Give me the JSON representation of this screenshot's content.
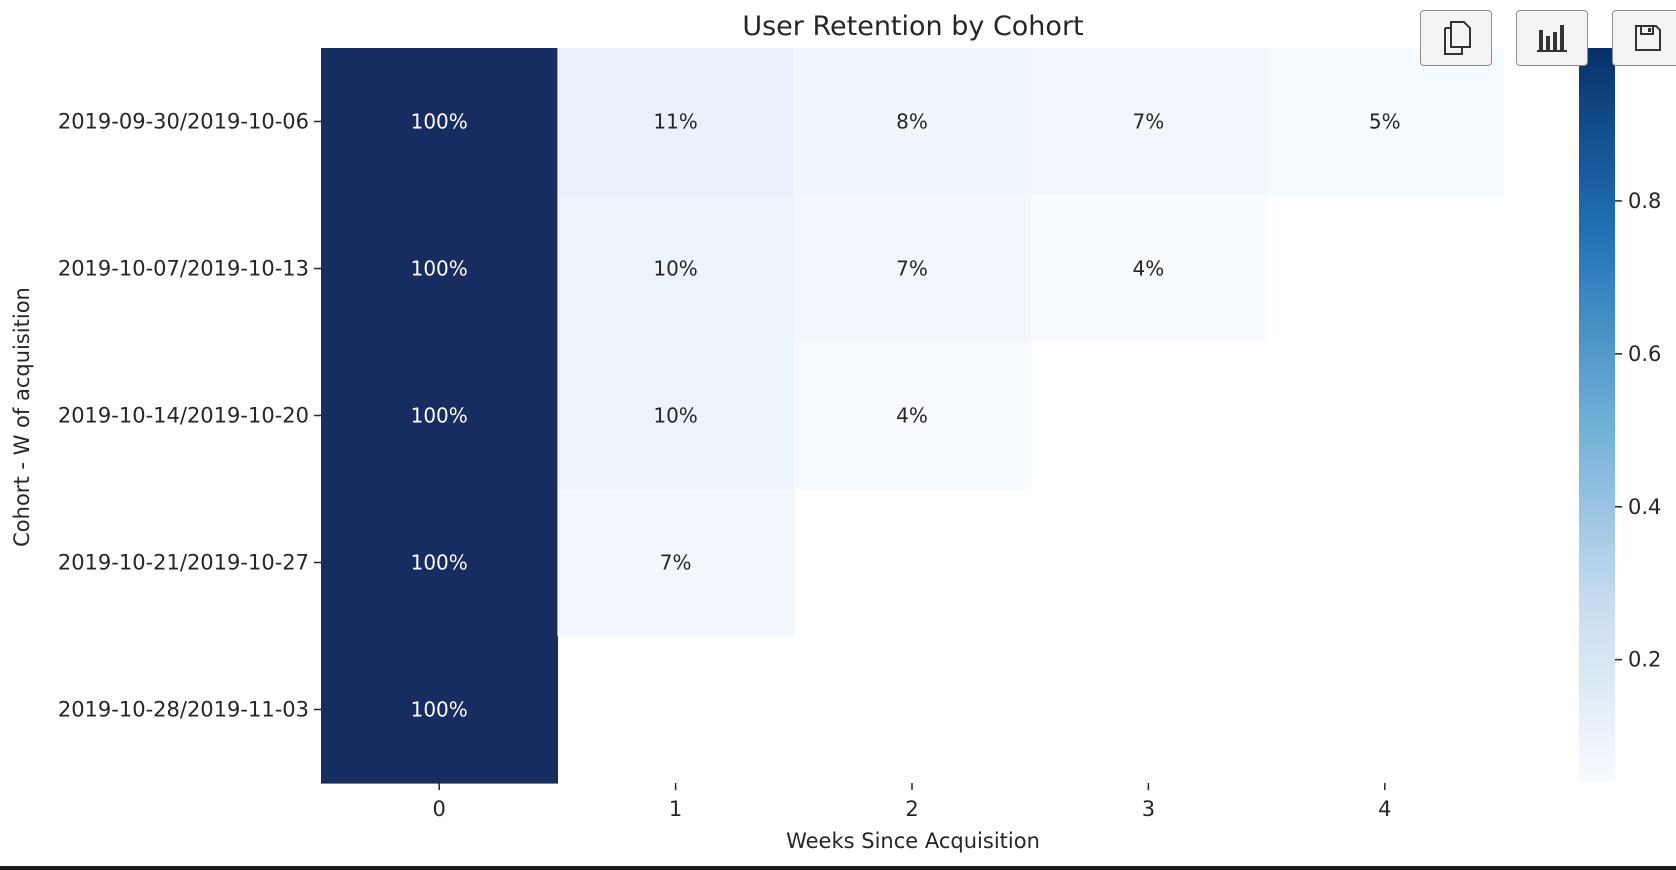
{
  "toolbar": {
    "buttons": [
      {
        "icon": "copy-icon"
      },
      {
        "icon": "bar-chart-icon"
      },
      {
        "icon": "save-icon"
      }
    ]
  },
  "colormap": {
    "name": "Blues",
    "low": "#f7fbff",
    "mid1": "#c6dbef",
    "mid2": "#6baed6",
    "mid3": "#2171b5",
    "high": "#08306b",
    "dark_cell": "#172d62"
  },
  "chart_data": {
    "type": "heatmap",
    "title": "User Retention by Cohort",
    "xlabel": "Weeks Since Acquisition",
    "ylabel": "Cohort - W of acquisition",
    "x_categories": [
      "0",
      "1",
      "2",
      "3",
      "4"
    ],
    "y_categories": [
      "2019-09-30/2019-10-06",
      "2019-10-07/2019-10-13",
      "2019-10-14/2019-10-20",
      "2019-10-21/2019-10-27",
      "2019-10-28/2019-11-03"
    ],
    "values": [
      [
        1.0,
        0.11,
        0.08,
        0.07,
        0.05
      ],
      [
        1.0,
        0.1,
        0.07,
        0.04,
        null
      ],
      [
        1.0,
        0.1,
        0.04,
        null,
        null
      ],
      [
        1.0,
        0.07,
        null,
        null,
        null
      ],
      [
        1.0,
        null,
        null,
        null,
        null
      ]
    ],
    "cell_labels": [
      [
        "100%",
        "11%",
        "8%",
        "7%",
        "5%"
      ],
      [
        "100%",
        "10%",
        "7%",
        "4%",
        null
      ],
      [
        "100%",
        "10%",
        "4%",
        null,
        null
      ],
      [
        "100%",
        "7%",
        null,
        null,
        null
      ],
      [
        "100%",
        null,
        null,
        null,
        null
      ]
    ],
    "colorbar": {
      "range": [
        0.04,
        1.0
      ],
      "ticks": [
        0.2,
        0.4,
        0.6,
        0.8
      ],
      "tick_labels": [
        "0.2",
        "0.4",
        "0.6",
        "0.8"
      ]
    }
  }
}
